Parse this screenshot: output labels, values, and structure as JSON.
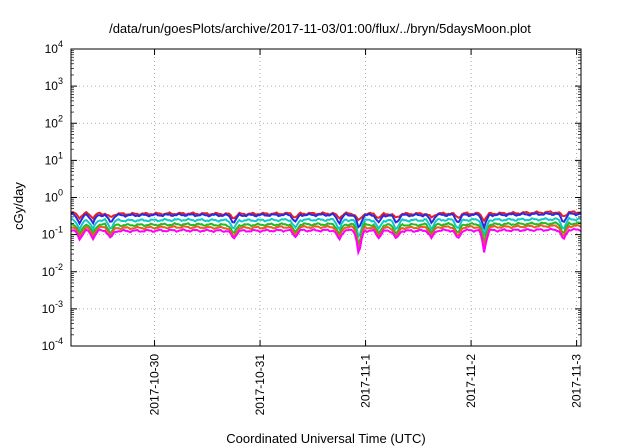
{
  "chart_data": {
    "type": "line",
    "title": "/data/run/goesPlots/archive/2017-11-03/01:00/flux/../bryn/5daysMoon.plot",
    "xlabel": "Coordinated Universal Time (UTC)",
    "ylabel": "cGy/day",
    "yscale": "log",
    "ylim": [
      0.0001,
      10000
    ],
    "y_ticks": [
      {
        "base": "10",
        "exp": "-4",
        "value": 0.0001
      },
      {
        "base": "10",
        "exp": "-3",
        "value": 0.001
      },
      {
        "base": "10",
        "exp": "-2",
        "value": 0.01
      },
      {
        "base": "10",
        "exp": "-1",
        "value": 0.1
      },
      {
        "base": "10",
        "exp": "0",
        "value": 1
      },
      {
        "base": "10",
        "exp": "1",
        "value": 10
      },
      {
        "base": "10",
        "exp": "2",
        "value": 100
      },
      {
        "base": "10",
        "exp": "3",
        "value": 1000
      },
      {
        "base": "10",
        "exp": "4",
        "value": 10000
      }
    ],
    "xlim": [
      "2017-10-29T05:00",
      "2017-11-03T01:00"
    ],
    "x_ticks": [
      {
        "label": "2017-10-30",
        "value": "2017-10-30T00:00"
      },
      {
        "label": "2017-10-31",
        "value": "2017-10-31T00:00"
      },
      {
        "label": "2017-11-1",
        "value": "2017-11-01T00:00"
      },
      {
        "label": "2017-11-2",
        "value": "2017-11-02T00:00"
      },
      {
        "label": "2017-11-3",
        "value": "2017-11-03T00:00"
      }
    ],
    "grid": true,
    "legend": "none",
    "x": [
      "2017-10-29T06:00",
      "2017-10-29T18:00",
      "2017-10-30T06:00",
      "2017-10-30T18:00",
      "2017-10-31T06:00",
      "2017-10-31T18:00",
      "2017-11-01T06:00",
      "2017-11-01T18:00",
      "2017-11-02T06:00",
      "2017-11-02T18:00"
    ],
    "series": [
      {
        "color": "#e8202a",
        "values": [
          0.38,
          0.36,
          0.37,
          0.36,
          0.37,
          0.37,
          0.36,
          0.37,
          0.37,
          0.4
        ]
      },
      {
        "color": "#2a2adf",
        "values": [
          0.34,
          0.33,
          0.34,
          0.33,
          0.34,
          0.34,
          0.33,
          0.34,
          0.34,
          0.36
        ]
      },
      {
        "color": "#11c8c8",
        "values": [
          0.25,
          0.24,
          0.25,
          0.24,
          0.25,
          0.25,
          0.24,
          0.25,
          0.25,
          0.26
        ]
      },
      {
        "color": "#22bb22",
        "values": [
          0.19,
          0.18,
          0.19,
          0.18,
          0.19,
          0.19,
          0.18,
          0.19,
          0.19,
          0.2
        ]
      },
      {
        "color": "#e86020",
        "values": [
          0.16,
          0.15,
          0.16,
          0.15,
          0.16,
          0.16,
          0.15,
          0.16,
          0.16,
          0.17
        ]
      },
      {
        "color": "#ff00ff",
        "values": [
          0.13,
          0.125,
          0.13,
          0.125,
          0.13,
          0.13,
          0.125,
          0.13,
          0.13,
          0.135
        ]
      }
    ],
    "dips": [
      {
        "x": "2017-10-29T07:00",
        "min": 0.07
      },
      {
        "x": "2017-10-29T10:00",
        "min": 0.075
      },
      {
        "x": "2017-10-29T14:00",
        "min": 0.08
      },
      {
        "x": "2017-10-30T18:00",
        "min": 0.075
      },
      {
        "x": "2017-10-31T18:00",
        "min": 0.07
      },
      {
        "x": "2017-10-31T08:00",
        "min": 0.085
      },
      {
        "x": "2017-11-01T03:00",
        "min": 0.08
      },
      {
        "x": "2017-10-31T22:30",
        "min": 0.02
      },
      {
        "x": "2017-11-01T07:00",
        "min": 0.075
      },
      {
        "x": "2017-11-01T15:00",
        "min": 0.08
      },
      {
        "x": "2017-11-01T21:00",
        "min": 0.075
      },
      {
        "x": "2017-11-02T03:00",
        "min": 0.03
      },
      {
        "x": "2017-11-02T21:00",
        "min": 0.07
      }
    ]
  }
}
